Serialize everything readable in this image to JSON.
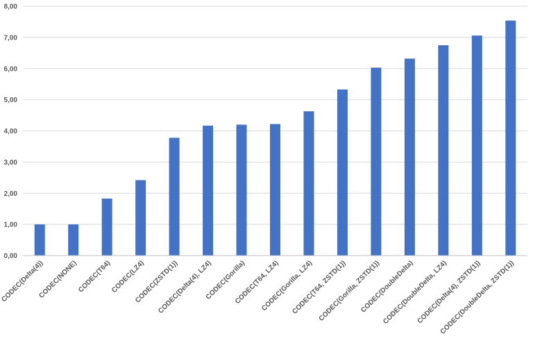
{
  "chart_data": {
    "type": "bar",
    "categories": [
      "CODEC(Delta(4))",
      "CODEC(NONE)",
      "CODEC(T64)",
      "CODEC(LZ4)",
      "CODEC(ZSTD(1))",
      "CODEC(Delta(4), LZ4)",
      "CODEC(Gorilla)",
      "CODEC(T64, LZ4)",
      "CODEC(Gorilla, LZ4)",
      "CODEC(T64, ZSTD(1))",
      "CODEC(Gorilla, ZSTD(1))",
      "CODEC(DoubleDelta)",
      "CODEC(DoubleDelta, LZ4)",
      "CODEC(Delta(4), ZSTD(1))",
      "CODEC(DoubleDelta, ZSTD(1))"
    ],
    "values": [
      1.0,
      1.0,
      1.83,
      2.42,
      3.78,
      4.17,
      4.2,
      4.22,
      4.63,
      5.33,
      6.03,
      6.32,
      6.75,
      7.06,
      7.54
    ],
    "yticks": [
      "0,00",
      "1,00",
      "2,00",
      "3,00",
      "4,00",
      "5,00",
      "6,00",
      "7,00",
      "8,00"
    ],
    "ylim": [
      0,
      8
    ],
    "title": "",
    "xlabel": "",
    "ylabel": "",
    "grid": true,
    "bar_color": "#4472C4"
  }
}
